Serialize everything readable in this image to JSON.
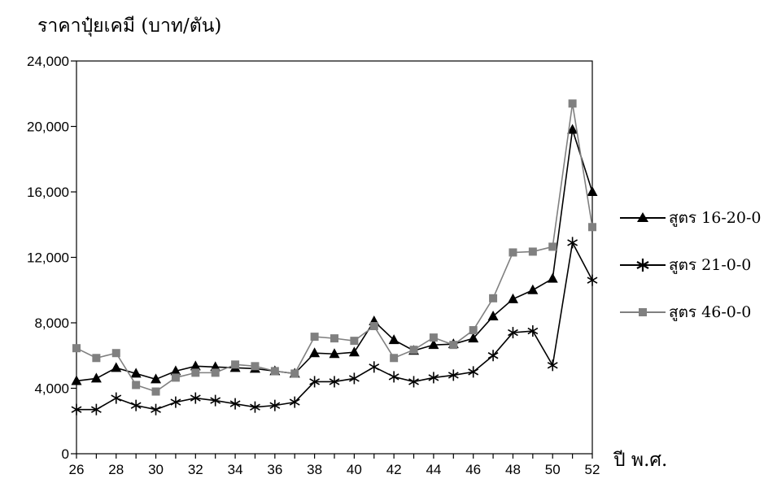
{
  "chart_data": {
    "type": "line",
    "ylabel": "ราคาปุ๋ยเคมี (บาท/ตัน)",
    "xlabel": "ปี พ.ศ.",
    "x": [
      26,
      27,
      28,
      29,
      30,
      31,
      32,
      33,
      34,
      35,
      36,
      37,
      38,
      39,
      40,
      41,
      42,
      43,
      44,
      45,
      46,
      47,
      48,
      49,
      50,
      51,
      52
    ],
    "xticks": [
      "26",
      "28",
      "30",
      "32",
      "34",
      "36",
      "38",
      "40",
      "42",
      "44",
      "46",
      "48",
      "50",
      "52"
    ],
    "yticks": [
      "0",
      "4,000",
      "8,000",
      "12,000",
      "16,000",
      "20,000",
      "24,000"
    ],
    "ylim": [
      0,
      24000
    ],
    "xlim": [
      26,
      52
    ],
    "legend_position": "right",
    "series": [
      {
        "name": "สูตร 16-20-0",
        "marker": "triangle",
        "color": "#000000",
        "values": [
          4450,
          4600,
          5250,
          4900,
          4550,
          5050,
          5350,
          5300,
          5250,
          5200,
          5050,
          4900,
          6150,
          6100,
          6200,
          8100,
          6950,
          6300,
          6650,
          6700,
          7050,
          8400,
          9450,
          10000,
          10700,
          19800,
          16000
        ]
      },
      {
        "name": "สูตร 21-0-0",
        "marker": "asterisk",
        "color": "#000000",
        "values": [
          2700,
          2700,
          3400,
          2950,
          2700,
          3150,
          3400,
          3250,
          3050,
          2850,
          2950,
          3150,
          4400,
          4400,
          4600,
          5300,
          4700,
          4400,
          4650,
          4800,
          5000,
          6000,
          7400,
          7500,
          5400,
          12900,
          10600
        ]
      },
      {
        "name": "สูตร 46-0-0",
        "marker": "square",
        "color": "#808080",
        "values": [
          6450,
          5850,
          6150,
          4200,
          3800,
          4650,
          4950,
          4950,
          5450,
          5350,
          5050,
          4900,
          7150,
          7050,
          6900,
          7800,
          5850,
          6350,
          7100,
          6650,
          7550,
          9500,
          12300,
          12350,
          12650,
          21400,
          13850
        ]
      }
    ]
  }
}
